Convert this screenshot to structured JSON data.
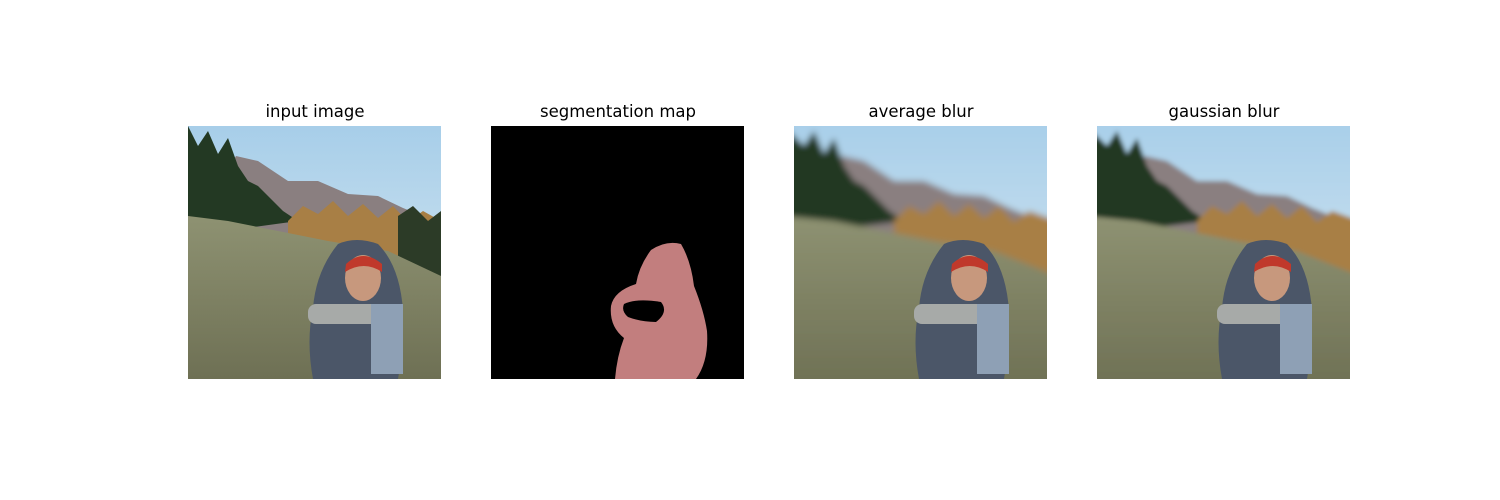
{
  "figure": {
    "background": "#ffffff",
    "panels": [
      {
        "title": "input image"
      },
      {
        "title": "segmentation map"
      },
      {
        "title": "average blur"
      },
      {
        "title": "gaussian blur"
      }
    ]
  },
  "colors": {
    "sky_top": "#a9cfe9",
    "sky_bottom": "#dbeaf1",
    "mountain": "#8c8182",
    "conifer": "#243a24",
    "golden_trees": "#b58a4c",
    "shrubs": "#8c8f6c",
    "hood": "#4e596a",
    "jacket": "#46505d",
    "beanie": "#c0392b",
    "pot": "#a7aaa8",
    "segmentation_background": "#000000",
    "segmentation_person": "#c27e7e"
  }
}
